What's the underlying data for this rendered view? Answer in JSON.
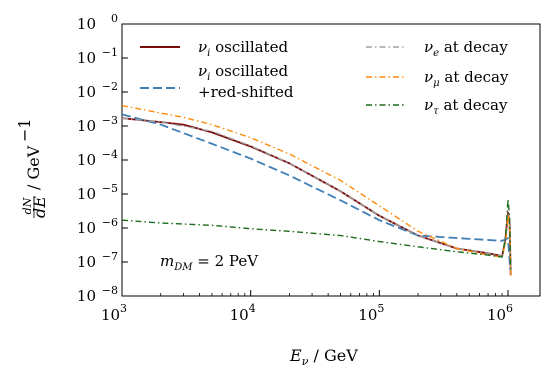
{
  "chart_data": {
    "type": "line",
    "x_scale": "log",
    "y_scale": "log",
    "xlim": [
      1000,
      1500000
    ],
    "ylim": [
      1e-08,
      1
    ],
    "xlabel": "E_ν / GeV",
    "ylabel": "dN/dE / GeV⁻¹",
    "x_ticks": [
      {
        "value": 1000,
        "label": "10^3"
      },
      {
        "value": 10000,
        "label": "10^4"
      },
      {
        "value": 100000,
        "label": "10^5"
      },
      {
        "value": 1000000,
        "label": "10^6"
      }
    ],
    "y_ticks": [
      {
        "value": 1,
        "label": "10^0"
      },
      {
        "value": 0.1,
        "label": "10^-1"
      },
      {
        "value": 0.01,
        "label": "10^-2"
      },
      {
        "value": 0.001,
        "label": "10^-3"
      },
      {
        "value": 0.0001,
        "label": "10^-4"
      },
      {
        "value": 1e-05,
        "label": "10^-5"
      },
      {
        "value": 1e-06,
        "label": "10^-6"
      },
      {
        "value": 1e-07,
        "label": "10^-7"
      },
      {
        "value": 1e-08,
        "label": "10^-8"
      }
    ],
    "annotation": "m_DM = 2 PeV",
    "legend_position": "top",
    "series": [
      {
        "name": "ν_i oscillated",
        "color": "#7b0c0c",
        "style": "solid",
        "x": [
          1000,
          2000,
          3000,
          5000,
          10000,
          20000,
          50000,
          100000,
          200000,
          400000,
          700000,
          900000,
          950000,
          1000000,
          1030000,
          1050000
        ],
        "y": [
          0.0017,
          0.0013,
          0.0011,
          0.00065,
          0.00025,
          8e-05,
          1.2e-05,
          2.3e-06,
          6e-07,
          2.5e-07,
          1.8e-07,
          1.5e-07,
          4e-07,
          2.8e-06,
          1.2e-06,
          4e-08
        ]
      },
      {
        "name": "ν_i oscillated +red-shifted",
        "color": "#3f7fb5",
        "style": "dashed",
        "x": [
          1000,
          2000,
          5000,
          10000,
          20000,
          50000,
          100000,
          200000,
          500000,
          900000,
          1000000,
          1040000
        ],
        "y": [
          0.0022,
          0.0011,
          0.0003,
          0.00011,
          3.5e-05,
          6.5e-06,
          1.7e-06,
          6e-07,
          4.8e-07,
          4.2e-07,
          5e-07,
          6e-08
        ]
      },
      {
        "name": "ν_e at decay",
        "color": "#a0a0a0",
        "style": "dashdot",
        "x": [
          1000,
          2000,
          5000,
          10000,
          20000,
          50000,
          100000,
          200000,
          400000,
          700000,
          900000,
          960000,
          1000000,
          1030000,
          1050000
        ],
        "y": [
          0.0017,
          0.0013,
          0.0007,
          0.00026,
          8e-05,
          1.2e-05,
          2.3e-06,
          6e-07,
          2.5e-07,
          1.8e-07,
          1.5e-07,
          5e-07,
          2.5e-06,
          1e-06,
          4e-08
        ]
      },
      {
        "name": "ν_μ at decay",
        "color": "#ff8a0d",
        "style": "dashdot",
        "x": [
          1000,
          2000,
          3000,
          5000,
          10000,
          20000,
          50000,
          100000,
          200000,
          400000,
          700000,
          900000,
          960000,
          1000000,
          1030000,
          1050000
        ],
        "y": [
          0.004,
          0.0024,
          0.0018,
          0.0011,
          0.00045,
          0.00015,
          2.5e-05,
          4.5e-06,
          8e-07,
          2.5e-07,
          1.6e-07,
          1.4e-07,
          4e-07,
          2.6e-06,
          1e-06,
          4e-08
        ]
      },
      {
        "name": "ν_τ at decay",
        "color": "#1d6b1d",
        "style": "dashdot",
        "x": [
          1000,
          2000,
          5000,
          10000,
          20000,
          50000,
          100000,
          200000,
          400000,
          700000,
          900000,
          960000,
          1000000,
          1030000,
          1050000
        ],
        "y": [
          1.7e-06,
          1.4e-06,
          1.2e-06,
          9.5e-07,
          8e-07,
          6e-07,
          4e-07,
          2.8e-07,
          2e-07,
          1.6e-07,
          1.4e-07,
          6e-07,
          7e-06,
          2e-06,
          5e-08
        ]
      }
    ]
  }
}
